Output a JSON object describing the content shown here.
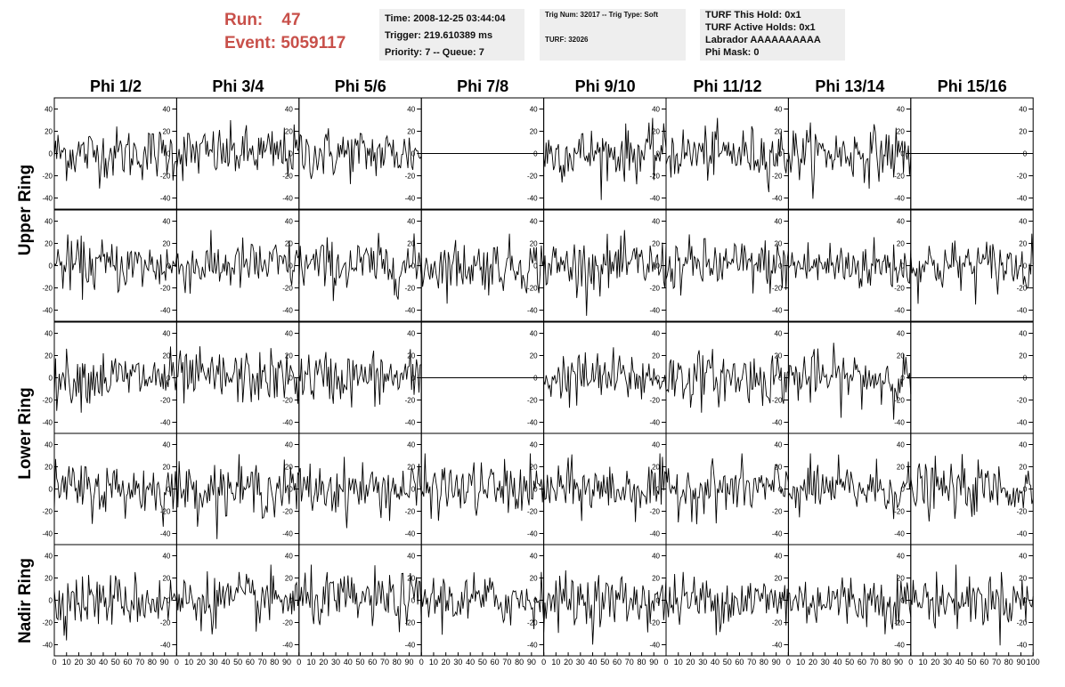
{
  "header": {
    "run_label": "Run:",
    "run_value": "47",
    "event_label": "Event:",
    "event_value": "5059117",
    "info1": [
      "Time: 2008-12-25 03:44:04",
      "Trigger: 219.610389 ms",
      "Priority: 7 -- Queue: 7"
    ],
    "info2": [
      "Trig Num: 32017 -- Trig Type: Soft",
      "TURF: 32026"
    ],
    "info3": [
      "TURF This Hold: 0x1",
      "TURF Active Holds: 0x1",
      "Labrador AAAAAAAAAA",
      "Phi Mask: 0"
    ]
  },
  "colors": {
    "accent": "#c8504a",
    "box_bg": "#eeeeee",
    "trace": "#000000"
  },
  "chart_data": {
    "type": "line",
    "columns": [
      "Phi 1/2",
      "Phi 3/4",
      "Phi 5/6",
      "Phi 7/8",
      "Phi 9/10",
      "Phi 11/12",
      "Phi 13/14",
      "Phi 15/16"
    ],
    "rows": [
      "Upper Ring",
      "Lower Ring",
      "Nadir Ring"
    ],
    "ylim": [
      -50,
      50
    ],
    "y_ticks": [
      -40,
      -20,
      0,
      20,
      40
    ],
    "xlim": [
      0,
      100
    ],
    "x_ticks": [
      0,
      10,
      20,
      30,
      40,
      50,
      60,
      70,
      80,
      90,
      100
    ],
    "x_tick_labels_edge": "10",
    "trace_points": 100,
    "flat_panels": [
      [
        0,
        3
      ],
      [
        0,
        7
      ],
      [
        2,
        3
      ],
      [
        2,
        7
      ]
    ]
  }
}
